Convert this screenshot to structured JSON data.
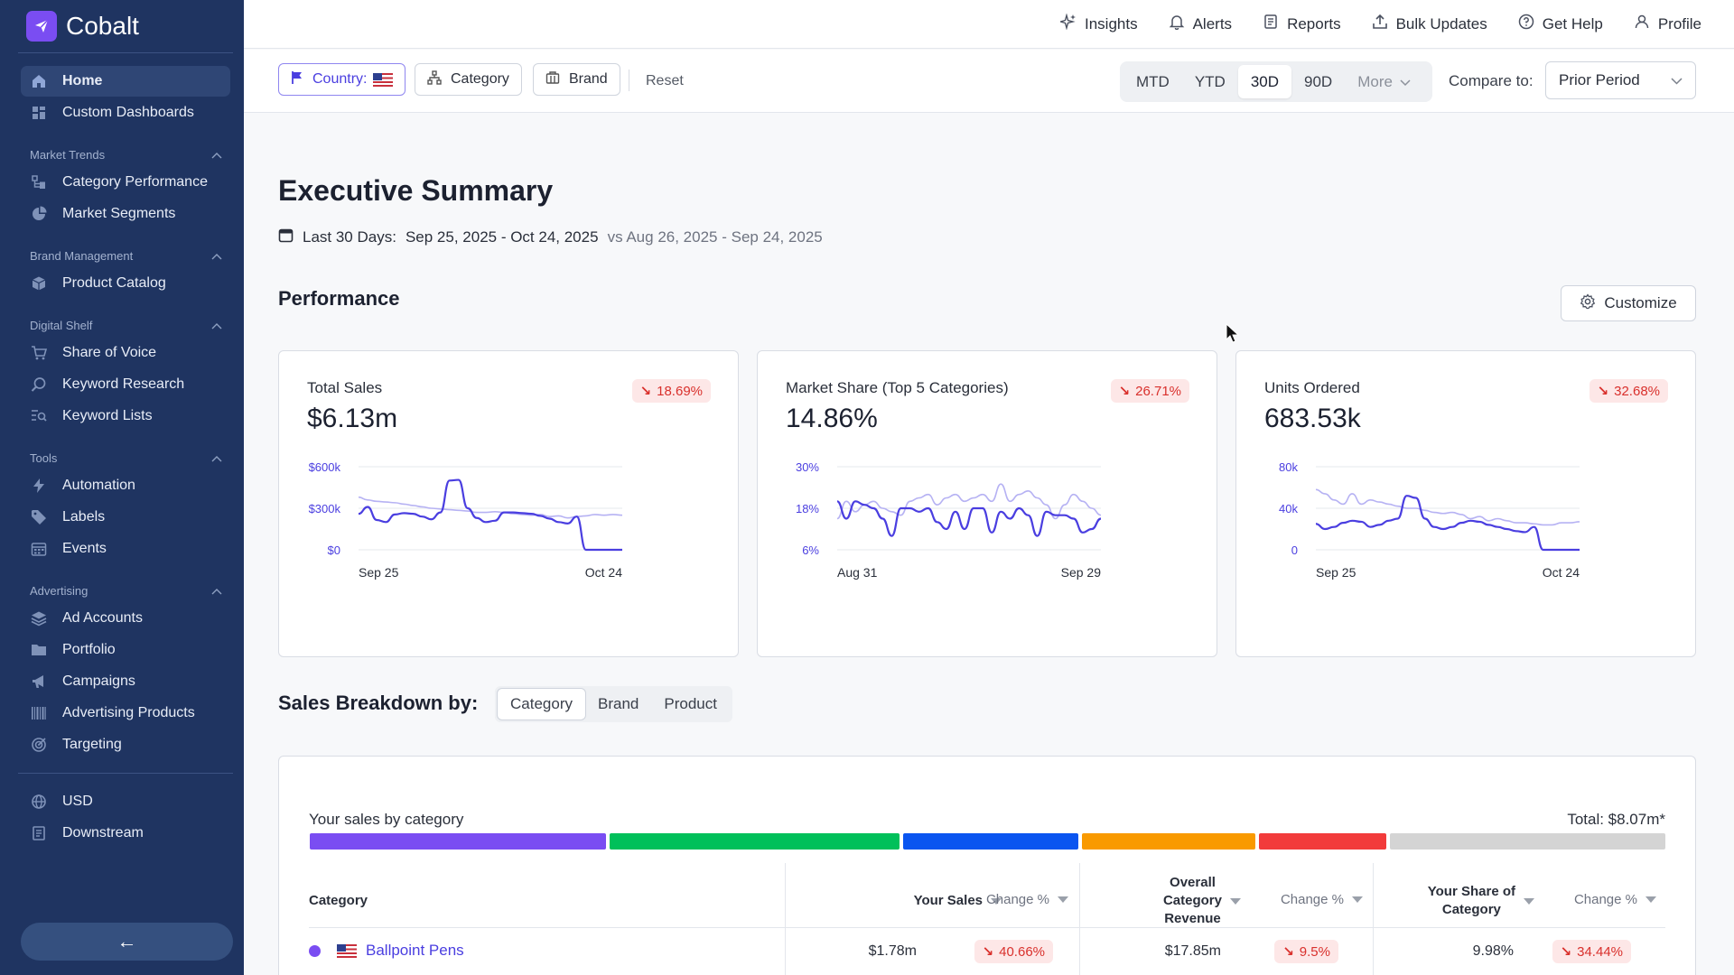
{
  "app": {
    "name": "Cobalt"
  },
  "sidebar": {
    "top_items": [
      {
        "label": "Home",
        "icon": "home-icon"
      },
      {
        "label": "Custom Dashboards",
        "icon": "dashboard-grid-icon"
      }
    ],
    "groups": [
      {
        "title": "Market Trends",
        "items": [
          {
            "label": "Category Performance",
            "icon": "category-tree-icon"
          },
          {
            "label": "Market Segments",
            "icon": "pie-chart-icon"
          }
        ]
      },
      {
        "title": "Brand Management",
        "items": [
          {
            "label": "Product Catalog",
            "icon": "box-icon"
          }
        ]
      },
      {
        "title": "Digital Shelf",
        "items": [
          {
            "label": "Share of Voice",
            "icon": "cart-icon"
          },
          {
            "label": "Keyword Research",
            "icon": "search-icon"
          },
          {
            "label": "Keyword Lists",
            "icon": "list-search-icon"
          }
        ]
      },
      {
        "title": "Tools",
        "items": [
          {
            "label": "Automation",
            "icon": "bolt-icon"
          },
          {
            "label": "Labels",
            "icon": "tag-icon"
          },
          {
            "label": "Events",
            "icon": "calendar-icon"
          }
        ]
      },
      {
        "title": "Advertising",
        "items": [
          {
            "label": "Ad Accounts",
            "icon": "layers-icon"
          },
          {
            "label": "Portfolio",
            "icon": "folder-icon"
          },
          {
            "label": "Campaigns",
            "icon": "megaphone-icon"
          },
          {
            "label": "Advertising Products",
            "icon": "barcode-icon"
          },
          {
            "label": "Targeting",
            "icon": "target-icon"
          }
        ]
      }
    ],
    "bottom_items": [
      {
        "label": "USD",
        "icon": "globe-icon"
      },
      {
        "label": "Downstream",
        "icon": "document-icon"
      }
    ],
    "collapse_glyph": "←"
  },
  "topbar": {
    "links": [
      "Insights",
      "Alerts",
      "Reports",
      "Bulk Updates",
      "Get Help",
      "Profile"
    ]
  },
  "filters": {
    "country": "Country:",
    "category": "Category",
    "brand": "Brand",
    "reset": "Reset",
    "periods": [
      "MTD",
      "YTD",
      "30D",
      "90D"
    ],
    "active_period": "30D",
    "more": "More",
    "compare_label": "Compare to:",
    "compare_value": "Prior Period"
  },
  "page": {
    "title": "Executive Summary",
    "date_label": "Last 30 Days:",
    "date_range": "Sep 25, 2025 - Oct 24, 2025",
    "compare_range": "vs Aug 26, 2025 - Sep 24, 2025",
    "performance_title": "Performance",
    "customize": "Customize"
  },
  "cards": [
    {
      "label": "Total Sales",
      "value": "$6.13m",
      "change": "18.69%",
      "y_ticks": [
        "$600k",
        "$300k",
        "$0"
      ],
      "x_ticks": [
        "Sep 25",
        "Oct 24"
      ]
    },
    {
      "label": "Market Share (Top 5 Categories)",
      "value": "14.86%",
      "change": "26.71%",
      "y_ticks": [
        "30%",
        "18%",
        "6%"
      ],
      "x_ticks": [
        "Aug 31",
        "Sep 29"
      ]
    },
    {
      "label": "Units Ordered",
      "value": "683.53k",
      "change": "32.68%",
      "y_ticks": [
        "80k",
        "40k",
        "0"
      ],
      "x_ticks": [
        "Sep 25",
        "Oct 24"
      ]
    }
  ],
  "chart_data": [
    {
      "type": "line",
      "title": "Total Sales",
      "ylim": [
        0,
        600000
      ],
      "series": [
        {
          "values": [
            260,
            310,
            215,
            200,
            255,
            265,
            260,
            240,
            220,
            270,
            500,
            505,
            300,
            230,
            200,
            210,
            270,
            270,
            265,
            260,
            245,
            225,
            200,
            190,
            240,
            0,
            0,
            0,
            0,
            0
          ]
        },
        {
          "values": [
            380,
            360,
            350,
            345,
            340,
            330,
            320,
            310,
            300,
            295,
            290,
            285,
            280,
            270,
            270,
            275,
            270,
            260,
            255,
            250,
            255,
            240,
            245,
            230,
            240,
            245,
            255,
            250,
            255,
            250
          ]
        }
      ]
    },
    {
      "type": "line",
      "title": "Market Share (Top 5 Categories)",
      "ylim": [
        6,
        30
      ],
      "series": [
        {
          "values": [
            20,
            15,
            20,
            19,
            18,
            15,
            10,
            18,
            18,
            17,
            18,
            14,
            12,
            17,
            12,
            18,
            18,
            11,
            17,
            15,
            18,
            16,
            10,
            17,
            16,
            16,
            15,
            11,
            12,
            15
          ]
        },
        {
          "values": [
            15,
            20,
            17,
            19,
            20,
            18,
            17,
            16,
            20,
            21,
            22,
            19,
            21,
            22,
            20,
            21,
            22,
            20,
            25,
            20,
            22,
            23,
            21,
            19,
            15,
            19,
            22,
            20,
            18,
            16
          ]
        }
      ]
    },
    {
      "type": "line",
      "title": "Units Ordered",
      "ylim": [
        0,
        80000
      ],
      "series": [
        {
          "values": [
            25,
            20,
            22,
            26,
            28,
            27,
            22,
            24,
            28,
            30,
            52,
            50,
            30,
            22,
            20,
            22,
            26,
            28,
            27,
            24,
            22,
            20,
            18,
            17,
            22,
            0,
            0,
            0,
            0,
            0
          ]
        },
        {
          "values": [
            58,
            54,
            48,
            44,
            54,
            44,
            48,
            46,
            44,
            42,
            40,
            40,
            38,
            36,
            35,
            36,
            34,
            30,
            32,
            28,
            30,
            28,
            26,
            26,
            25,
            24,
            24,
            26,
            26,
            27
          ]
        }
      ]
    }
  ],
  "breakdown": {
    "title": "Sales Breakdown by:",
    "tabs": [
      "Category",
      "Brand",
      "Product"
    ],
    "active_tab": "Category",
    "chart_title": "Your sales by category",
    "total": "Total: $8.07m*",
    "segments": [
      {
        "color": "#7a4df2",
        "share": 0.22
      },
      {
        "color": "#00c05a",
        "share": 0.215
      },
      {
        "color": "#0a55f0",
        "share": 0.13
      },
      {
        "color": "#f99a00",
        "share": 0.128
      },
      {
        "color": "#f23b3b",
        "share": 0.095
      },
      {
        "color": "#d4d4d4",
        "share": 0.204
      }
    ],
    "columns": {
      "category": "Category",
      "your_sales": "Your Sales",
      "change1": "Change %",
      "overall_l1": "Overall",
      "overall_l2": "Category",
      "overall_l3": "Revenue",
      "change2": "Change %",
      "share_l1": "Your Share of",
      "share_l2": "Category",
      "change3": "Change %"
    },
    "rows": [
      {
        "name": "Ballpoint Pens",
        "your_sales": "$1.78m",
        "change1": "40.66%",
        "overall": "$17.85m",
        "change2": "9.5%",
        "share": "9.98%",
        "change3": "34.44%"
      }
    ]
  },
  "colors": {
    "sidebar": "#1f3461",
    "accent": "#4a3ee0",
    "negative": "#d9302c"
  }
}
